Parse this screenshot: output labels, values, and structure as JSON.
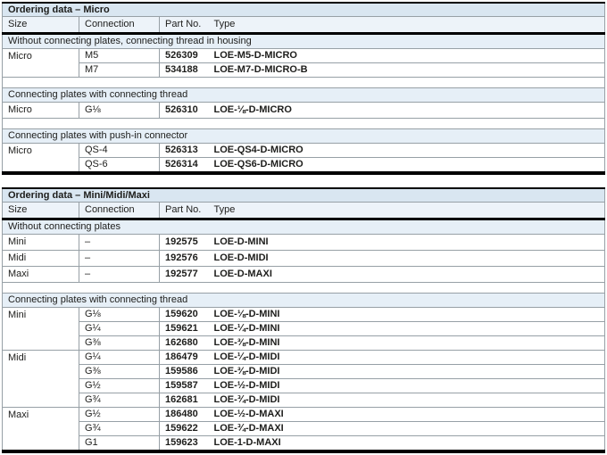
{
  "colors": {
    "title-bg": "#d9e6f1",
    "head-bg": "#edf3f9",
    "section-bg": "#e6eff7",
    "grid": "#97a0a6",
    "text": "#1d1d1b",
    "rule": "#000000"
  },
  "tables": [
    {
      "id": "micro",
      "title": "Ordering data  – Micro",
      "columns": [
        "Size",
        "Connection",
        "Part No.",
        "Type"
      ],
      "sections": [
        {
          "label": "Without connecting plates, connecting thread in housing",
          "groups": [
            {
              "size": "Micro",
              "rows": [
                {
                  "connection": "M5",
                  "part_no": "526309",
                  "type": "LOE-M5-D-MICRO"
                },
                {
                  "connection": "M7",
                  "part_no": "534188",
                  "type": "LOE-M7-D-MICRO-B"
                }
              ]
            }
          ]
        },
        {
          "label": "Connecting plates with connecting thread",
          "groups": [
            {
              "size": "Micro",
              "rows": [
                {
                  "connection": "G⅛",
                  "part_no": "526310",
                  "type": "LOE-⅛-D-MICRO"
                }
              ]
            }
          ]
        },
        {
          "label": "Connecting plates with push-in connector",
          "groups": [
            {
              "size": "Micro",
              "rows": [
                {
                  "connection": "QS-4",
                  "part_no": "526313",
                  "type": "LOE-QS4-D-MICRO"
                },
                {
                  "connection": "QS-6",
                  "part_no": "526314",
                  "type": "LOE-QS6-D-MICRO"
                }
              ]
            }
          ]
        }
      ]
    },
    {
      "id": "mini-midi-maxi",
      "title": "Ordering data – Mini/Midi/Maxi",
      "columns": [
        "Size",
        "Connection",
        "Part No.",
        "Type"
      ],
      "sections": [
        {
          "label": "Without connecting plates",
          "groups": [
            {
              "size": "Mini",
              "rows": [
                {
                  "connection": "–",
                  "part_no": "192575",
                  "type": "LOE-D-MINI"
                }
              ]
            },
            {
              "size": "Midi",
              "rows": [
                {
                  "connection": "–",
                  "part_no": "192576",
                  "type": "LOE-D-MIDI"
                }
              ]
            },
            {
              "size": "Maxi",
              "rows": [
                {
                  "connection": "–",
                  "part_no": "192577",
                  "type": "LOE-D-MAXI"
                }
              ]
            }
          ]
        },
        {
          "label": "Connecting plates with connecting thread",
          "groups": [
            {
              "size": "Mini",
              "rows": [
                {
                  "connection": "G⅛",
                  "part_no": "159620",
                  "type": "LOE-⅛-D-MINI"
                },
                {
                  "connection": "G¼",
                  "part_no": "159621",
                  "type": "LOE-¼-D-MINI"
                },
                {
                  "connection": "G⅜",
                  "part_no": "162680",
                  "type": "LOE-⅜-D-MINI"
                }
              ]
            },
            {
              "size": "Midi",
              "rows": [
                {
                  "connection": "G¼",
                  "part_no": "186479",
                  "type": "LOE-¼-D-MIDI"
                },
                {
                  "connection": "G⅜",
                  "part_no": "159586",
                  "type": "LOE-⅜-D-MIDI"
                },
                {
                  "connection": "G½",
                  "part_no": "159587",
                  "type": "LOE-½-D-MIDI"
                },
                {
                  "connection": "G¾",
                  "part_no": "162681",
                  "type": "LOE-¾-D-MIDI"
                }
              ]
            },
            {
              "size": "Maxi",
              "rows": [
                {
                  "connection": "G½",
                  "part_no": "186480",
                  "type": "LOE-½-D-MAXI"
                },
                {
                  "connection": "G¾",
                  "part_no": "159622",
                  "type": "LOE-¾-D-MAXI"
                },
                {
                  "connection": "G1",
                  "part_no": "159623",
                  "type": "LOE-1-D-MAXI"
                }
              ]
            }
          ]
        }
      ]
    }
  ]
}
